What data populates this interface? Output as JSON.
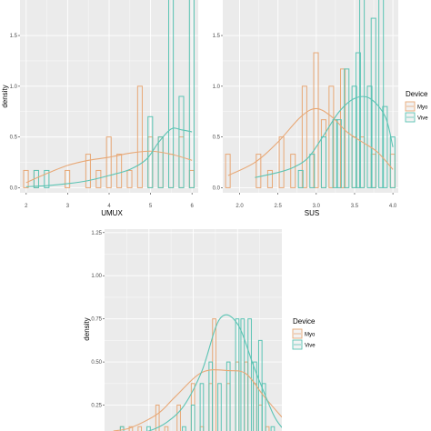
{
  "colors": {
    "myo": "#E8A876",
    "vive": "#5BC4B4",
    "panel": "#EBEBEB",
    "grid": "#FFFFFF"
  },
  "chart_data": [
    {
      "type": "histogram+density",
      "xlabel": "UMUX",
      "ylabel": "density",
      "xlim": [
        1.85,
        6.15
      ],
      "ylim": [
        -0.05,
        1.85
      ],
      "xticks": [
        "2",
        "3",
        "4",
        "5",
        "6"
      ],
      "yticks": [
        "0.0",
        "0.5",
        "1.0",
        "1.5"
      ],
      "bin_width": 0.125,
      "legend": null,
      "series": [
        {
          "name": "Myo",
          "bars": [
            [
              2.0,
              0.17
            ],
            [
              2.25,
              0.17
            ],
            [
              3.0,
              0.17
            ],
            [
              3.5,
              0.33
            ],
            [
              3.75,
              0.17
            ],
            [
              4.0,
              0.5
            ],
            [
              4.25,
              0.33
            ],
            [
              4.5,
              0.17
            ],
            [
              4.75,
              1.0
            ],
            [
              5.0,
              0.5
            ],
            [
              5.25,
              0.5
            ],
            [
              5.5,
              0.33
            ],
            [
              5.75,
              0.5
            ],
            [
              6.0,
              0.17
            ]
          ],
          "density": [
            [
              2.0,
              0.05
            ],
            [
              2.5,
              0.14
            ],
            [
              3.0,
              0.22
            ],
            [
              3.5,
              0.27
            ],
            [
              4.0,
              0.3
            ],
            [
              4.5,
              0.34
            ],
            [
              5.0,
              0.36
            ],
            [
              5.5,
              0.33
            ],
            [
              6.0,
              0.27
            ]
          ]
        },
        {
          "name": "Vive",
          "bars": [
            [
              2.25,
              0.17
            ],
            [
              2.5,
              0.17
            ],
            [
              5.0,
              0.7
            ],
            [
              5.25,
              0.5
            ],
            [
              5.5,
              2.0
            ],
            [
              5.75,
              0.9
            ],
            [
              6.0,
              2.0
            ]
          ],
          "density": [
            [
              2.0,
              0.01
            ],
            [
              2.5,
              0.02
            ],
            [
              3.0,
              0.04
            ],
            [
              3.5,
              0.07
            ],
            [
              4.0,
              0.12
            ],
            [
              4.5,
              0.18
            ],
            [
              4.9,
              0.28
            ],
            [
              5.2,
              0.45
            ],
            [
              5.5,
              0.58
            ],
            [
              5.75,
              0.57
            ],
            [
              6.0,
              0.55
            ]
          ]
        }
      ]
    },
    {
      "type": "histogram+density",
      "xlabel": "SUS",
      "ylabel": "",
      "xlim": [
        1.78,
        4.07
      ],
      "ylim": [
        -0.05,
        1.85
      ],
      "xticks": [
        "2.0",
        "2.5",
        "3.0",
        "3.5",
        "4.0"
      ],
      "yticks": [
        "0.0",
        "0.5",
        "1.0",
        "1.5"
      ],
      "bin_width": 0.067,
      "legend": {
        "title": "Device",
        "entries": [
          "Myo",
          "Vive"
        ],
        "placement": "right"
      },
      "series": [
        {
          "name": "Myo",
          "bars": [
            [
              1.85,
              0.33
            ],
            [
              2.25,
              0.33
            ],
            [
              2.4,
              0.17
            ],
            [
              2.55,
              0.5
            ],
            [
              2.7,
              0.33
            ],
            [
              2.85,
              1.0
            ],
            [
              3.0,
              1.33
            ],
            [
              3.1,
              0.67
            ],
            [
              3.2,
              1.0
            ],
            [
              3.35,
              1.17
            ],
            [
              3.5,
              0.5
            ],
            [
              3.6,
              0.5
            ],
            [
              3.75,
              0.33
            ],
            [
              4.0,
              0.33
            ]
          ],
          "density": [
            [
              1.85,
              0.12
            ],
            [
              2.2,
              0.25
            ],
            [
              2.5,
              0.45
            ],
            [
              2.8,
              0.7
            ],
            [
              3.0,
              0.78
            ],
            [
              3.2,
              0.7
            ],
            [
              3.4,
              0.55
            ],
            [
              3.6,
              0.45
            ],
            [
              3.8,
              0.35
            ],
            [
              4.0,
              0.18
            ]
          ]
        },
        {
          "name": "Vive",
          "bars": [
            [
              2.8,
              0.17
            ],
            [
              2.95,
              0.33
            ],
            [
              3.1,
              0.5
            ],
            [
              3.25,
              0.67
            ],
            [
              3.3,
              0.67
            ],
            [
              3.4,
              1.17
            ],
            [
              3.5,
              1.0
            ],
            [
              3.55,
              1.33
            ],
            [
              3.6,
              2.0
            ],
            [
              3.7,
              1.0
            ],
            [
              3.75,
              1.67
            ],
            [
              3.85,
              2.0
            ],
            [
              3.9,
              0.8
            ],
            [
              4.0,
              0.5
            ]
          ],
          "density": [
            [
              2.2,
              0.1
            ],
            [
              2.5,
              0.15
            ],
            [
              2.7,
              0.2
            ],
            [
              2.9,
              0.3
            ],
            [
              3.1,
              0.52
            ],
            [
              3.3,
              0.75
            ],
            [
              3.5,
              0.88
            ],
            [
              3.7,
              0.88
            ],
            [
              3.9,
              0.7
            ],
            [
              4.0,
              0.4
            ]
          ]
        }
      ]
    },
    {
      "type": "histogram+density",
      "xlabel": "",
      "ylabel": "density",
      "xlim": [
        0,
        1
      ],
      "ylim": [
        0.1,
        1.27
      ],
      "xticks": [],
      "yticks": [
        "0.25",
        "0.50",
        "0.75",
        "1.00",
        "1.25"
      ],
      "bin_width": 0.022,
      "legend": {
        "title": "Device",
        "entries": [
          "Myo",
          "Vive"
        ],
        "placement": "right"
      },
      "series": [
        {
          "name": "Myo",
          "bars": [
            [
              0.1,
              0.125
            ],
            [
              0.15,
              0.125
            ],
            [
              0.2,
              0.125
            ],
            [
              0.3,
              0.25
            ],
            [
              0.35,
              0.125
            ],
            [
              0.42,
              0.25
            ],
            [
              0.5,
              0.375
            ],
            [
              0.55,
              0.125
            ],
            [
              0.6,
              0.375
            ],
            [
              0.62,
              0.75
            ],
            [
              0.7,
              0.375
            ],
            [
              0.75,
              0.5
            ],
            [
              0.8,
              0.5
            ],
            [
              0.85,
              0.375
            ],
            [
              0.88,
              0.25
            ],
            [
              0.92,
              0.125
            ]
          ],
          "density": [
            [
              0.05,
              0.1
            ],
            [
              0.15,
              0.12
            ],
            [
              0.3,
              0.2
            ],
            [
              0.4,
              0.3
            ],
            [
              0.55,
              0.44
            ],
            [
              0.7,
              0.45
            ],
            [
              0.8,
              0.43
            ],
            [
              0.9,
              0.3
            ],
            [
              1.0,
              0.18
            ]
          ]
        },
        {
          "name": "Vive",
          "bars": [
            [
              0.1,
              0.125
            ],
            [
              0.25,
              0.125
            ],
            [
              0.45,
              0.125
            ],
            [
              0.5,
              0.25
            ],
            [
              0.55,
              0.375
            ],
            [
              0.6,
              0.5
            ],
            [
              0.65,
              0.375
            ],
            [
              0.7,
              0.5
            ],
            [
              0.75,
              0.75
            ],
            [
              0.78,
              0.75
            ],
            [
              0.82,
              0.75
            ],
            [
              0.85,
              0.5
            ],
            [
              0.88,
              0.625
            ],
            [
              0.9,
              0.375
            ],
            [
              0.95,
              0.125
            ]
          ],
          "density": [
            [
              0.05,
              0.05
            ],
            [
              0.15,
              0.08
            ],
            [
              0.25,
              0.1
            ],
            [
              0.35,
              0.15
            ],
            [
              0.45,
              0.25
            ],
            [
              0.55,
              0.45
            ],
            [
              0.65,
              0.75
            ],
            [
              0.75,
              0.72
            ],
            [
              0.85,
              0.45
            ],
            [
              0.95,
              0.2
            ],
            [
              1.0,
              0.12
            ]
          ]
        }
      ]
    }
  ]
}
